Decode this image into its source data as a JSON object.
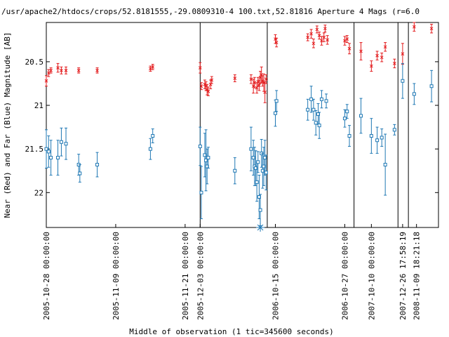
{
  "chart_data": {
    "type": "scatter",
    "title": "/usr/apache2/htdocs/crops/52.8181555,-29.0809310-4 100.txt,52.81816    Aperture 4 Mags (r=6.0",
    "xlabel": "Middle of observation (1 tic=345600 seconds)",
    "ylabel": "Near (Red) and Far (Blue) Magnitude [AB]",
    "y_inverted": true,
    "ylim": [
      22.4,
      20.05
    ],
    "y_ticks": [
      {
        "value": 20.5,
        "label": "20.5"
      },
      {
        "value": 21,
        "label": "21"
      },
      {
        "value": 21.5,
        "label": "21.5"
      },
      {
        "value": 22,
        "label": "22"
      }
    ],
    "grid": false,
    "legend": "none",
    "colors": {
      "near": "#e31a1c",
      "far": "#1f78b4",
      "axis": "#000000"
    },
    "segments": [
      {
        "x_range": [
          0,
          6.65
        ],
        "x_ticks": [
          {
            "x": 0,
            "label": "2005-10-28 00:00:00"
          },
          {
            "x": 3,
            "label": "2005-11-09 00:00:00"
          },
          {
            "x": 6,
            "label": "2005-11-21 00:00:00"
          }
        ]
      },
      {
        "x_range": [
          0,
          2.9
        ],
        "x_ticks": [
          {
            "x": 0,
            "label": "2005-12-03 00:00:00"
          }
        ]
      },
      {
        "x_range": [
          0,
          3.75
        ],
        "x_ticks": [
          {
            "x": 0.35,
            "label": "2006-10-15 00:00:00"
          },
          {
            "x": 3.35,
            "label": "2006-10-27 00:00:00"
          }
        ]
      },
      {
        "x_range": [
          0,
          1.9
        ],
        "x_ticks": [
          {
            "x": 0.75,
            "label": "2007-10-10 00:00:00"
          }
        ]
      },
      {
        "x_range": [
          0,
          0.45
        ],
        "x_ticks": [
          {
            "x": 0.2,
            "label": "2007-12-26 17:58:19"
          }
        ]
      },
      {
        "x_range": [
          0,
          1.3
        ],
        "x_ticks": [
          {
            "x": 0.35,
            "label": "2008-11-09 18:21:18"
          }
        ]
      }
    ],
    "series": [
      {
        "name": "Near",
        "marker": "x",
        "points": [
          {
            "s": 0,
            "x": 0.0,
            "y": 20.72,
            "e": 0.06
          },
          {
            "s": 0,
            "x": 0.1,
            "y": 20.63,
            "e": 0.04
          },
          {
            "s": 0,
            "x": 0.2,
            "y": 20.6,
            "e": 0.03
          },
          {
            "s": 0,
            "x": 0.5,
            "y": 20.57,
            "e": 0.05
          },
          {
            "s": 0,
            "x": 0.65,
            "y": 20.6,
            "e": 0.04
          },
          {
            "s": 0,
            "x": 0.85,
            "y": 20.6,
            "e": 0.04
          },
          {
            "s": 0,
            "x": 1.4,
            "y": 20.6,
            "e": 0.03
          },
          {
            "s": 0,
            "x": 2.2,
            "y": 20.6,
            "e": 0.03
          },
          {
            "s": 0,
            "x": 4.5,
            "y": 20.58,
            "e": 0.03
          },
          {
            "s": 0,
            "x": 4.6,
            "y": 20.56,
            "e": 0.03
          },
          {
            "s": 1,
            "x": 0.0,
            "y": 20.57,
            "e": 0.06
          },
          {
            "s": 1,
            "x": 0.05,
            "y": 20.78,
            "e": 0.04
          },
          {
            "s": 1,
            "x": 0.2,
            "y": 20.76,
            "e": 0.05
          },
          {
            "s": 1,
            "x": 0.25,
            "y": 20.78,
            "e": 0.05
          },
          {
            "s": 1,
            "x": 0.3,
            "y": 20.82,
            "e": 0.06
          },
          {
            "s": 1,
            "x": 0.35,
            "y": 20.84,
            "e": 0.05
          },
          {
            "s": 1,
            "x": 0.45,
            "y": 20.76,
            "e": 0.05
          },
          {
            "s": 1,
            "x": 0.5,
            "y": 20.71,
            "e": 0.04
          },
          {
            "s": 1,
            "x": 1.5,
            "y": 20.69,
            "e": 0.04
          },
          {
            "s": 1,
            "x": 2.2,
            "y": 20.7,
            "e": 0.05
          },
          {
            "s": 1,
            "x": 2.3,
            "y": 20.78,
            "e": 0.08
          },
          {
            "s": 1,
            "x": 2.35,
            "y": 20.74,
            "e": 0.06
          },
          {
            "s": 1,
            "x": 2.45,
            "y": 20.8,
            "e": 0.06
          },
          {
            "s": 1,
            "x": 2.5,
            "y": 20.73,
            "e": 0.05
          },
          {
            "s": 1,
            "x": 2.55,
            "y": 20.77,
            "e": 0.06
          },
          {
            "s": 1,
            "x": 2.6,
            "y": 20.68,
            "e": 0.07
          },
          {
            "s": 1,
            "x": 2.65,
            "y": 20.65,
            "e": 0.09
          },
          {
            "s": 1,
            "x": 2.7,
            "y": 20.72,
            "e": 0.06
          },
          {
            "s": 1,
            "x": 2.75,
            "y": 20.74,
            "e": 0.1
          },
          {
            "s": 1,
            "x": 2.8,
            "y": 20.85,
            "e": 0.12
          },
          {
            "s": 1,
            "x": 2.85,
            "y": 20.7,
            "e": 0.05
          },
          {
            "s": 2,
            "x": 0.35,
            "y": 20.24,
            "e": 0.05
          },
          {
            "s": 2,
            "x": 0.4,
            "y": 20.28,
            "e": 0.05
          },
          {
            "s": 2,
            "x": 1.75,
            "y": 20.22,
            "e": 0.04
          },
          {
            "s": 2,
            "x": 1.9,
            "y": 20.18,
            "e": 0.05
          },
          {
            "s": 2,
            "x": 2.0,
            "y": 20.29,
            "e": 0.05
          },
          {
            "s": 2,
            "x": 2.15,
            "y": 20.13,
            "e": 0.04
          },
          {
            "s": 2,
            "x": 2.25,
            "y": 20.2,
            "e": 0.04
          },
          {
            "s": 2,
            "x": 2.35,
            "y": 20.26,
            "e": 0.05
          },
          {
            "s": 2,
            "x": 2.45,
            "y": 20.22,
            "e": 0.05
          },
          {
            "s": 2,
            "x": 2.5,
            "y": 20.12,
            "e": 0.04
          },
          {
            "s": 2,
            "x": 2.6,
            "y": 20.25,
            "e": 0.05
          },
          {
            "s": 2,
            "x": 3.35,
            "y": 20.26,
            "e": 0.05
          },
          {
            "s": 2,
            "x": 3.45,
            "y": 20.24,
            "e": 0.04
          },
          {
            "s": 2,
            "x": 3.55,
            "y": 20.35,
            "e": 0.06
          },
          {
            "s": 3,
            "x": 0.3,
            "y": 20.38,
            "e": 0.1
          },
          {
            "s": 3,
            "x": 0.75,
            "y": 20.55,
            "e": 0.06
          },
          {
            "s": 3,
            "x": 1.0,
            "y": 20.43,
            "e": 0.05
          },
          {
            "s": 3,
            "x": 1.2,
            "y": 20.45,
            "e": 0.05
          },
          {
            "s": 3,
            "x": 1.35,
            "y": 20.33,
            "e": 0.05
          },
          {
            "s": 3,
            "x": 1.75,
            "y": 20.52,
            "e": 0.05
          },
          {
            "s": 4,
            "x": 0.2,
            "y": 20.41,
            "e": 0.12
          },
          {
            "s": 5,
            "x": 0.25,
            "y": 20.1,
            "e": 0.05
          },
          {
            "s": 5,
            "x": 1.0,
            "y": 20.12,
            "e": 0.05
          }
        ]
      },
      {
        "name": "Far",
        "marker": "square",
        "points": [
          {
            "s": 0,
            "x": 0.0,
            "y": 21.5,
            "e": 0.22
          },
          {
            "s": 0,
            "x": 0.1,
            "y": 21.53,
            "e": 0.18
          },
          {
            "s": 0,
            "x": 0.2,
            "y": 21.6,
            "e": 0.2
          },
          {
            "s": 0,
            "x": 0.5,
            "y": 21.6,
            "e": 0.2
          },
          {
            "s": 0,
            "x": 0.65,
            "y": 21.42,
            "e": 0.16
          },
          {
            "s": 0,
            "x": 0.85,
            "y": 21.44,
            "e": 0.18
          },
          {
            "s": 0,
            "x": 1.4,
            "y": 21.68,
            "e": 0.12
          },
          {
            "s": 0,
            "x": 1.45,
            "y": 21.78,
            "e": 0.1
          },
          {
            "s": 0,
            "x": 2.2,
            "y": 21.68,
            "e": 0.14
          },
          {
            "s": 0,
            "x": 4.5,
            "y": 21.5,
            "e": 0.12
          },
          {
            "s": 0,
            "x": 4.6,
            "y": 21.35,
            "e": 0.08
          },
          {
            "s": 1,
            "x": 0.0,
            "y": 21.47,
            "e": 0.22
          },
          {
            "s": 1,
            "x": 0.05,
            "y": 22.0,
            "e": 0.3
          },
          {
            "s": 1,
            "x": 0.2,
            "y": 21.57,
            "e": 0.25
          },
          {
            "s": 1,
            "x": 0.25,
            "y": 21.63,
            "e": 0.35
          },
          {
            "s": 1,
            "x": 0.3,
            "y": 21.7,
            "e": 0.2
          },
          {
            "s": 1,
            "x": 0.35,
            "y": 21.6,
            "e": 0.12
          },
          {
            "s": 1,
            "x": 1.5,
            "y": 21.75,
            "e": 0.15
          },
          {
            "s": 1,
            "x": 2.2,
            "y": 21.5,
            "e": 0.25
          },
          {
            "s": 1,
            "x": 2.3,
            "y": 21.6,
            "e": 0.2
          },
          {
            "s": 1,
            "x": 2.35,
            "y": 21.7,
            "e": 0.22
          },
          {
            "s": 1,
            "x": 2.4,
            "y": 21.72,
            "e": 0.2
          },
          {
            "s": 1,
            "x": 2.45,
            "y": 21.88,
            "e": 0.22
          },
          {
            "s": 1,
            "x": 2.5,
            "y": 21.65,
            "e": 0.12
          },
          {
            "s": 1,
            "x": 2.55,
            "y": 22.05,
            "e": 0.25
          },
          {
            "s": 1,
            "x": 2.6,
            "y": 22.2,
            "e": 0.18
          },
          {
            "s": 1,
            "x": 2.65,
            "y": 21.55,
            "e": 0.16
          },
          {
            "s": 1,
            "x": 2.7,
            "y": 21.75,
            "e": 0.2
          },
          {
            "s": 1,
            "x": 2.75,
            "y": 21.7,
            "e": 0.22
          },
          {
            "s": 1,
            "x": 2.8,
            "y": 21.6,
            "e": 0.2
          },
          {
            "s": 1,
            "x": 2.85,
            "y": 21.77,
            "e": 0.2
          },
          {
            "s": 2,
            "x": 0.35,
            "y": 21.09,
            "e": 0.15
          },
          {
            "s": 2,
            "x": 0.4,
            "y": 20.95,
            "e": 0.12
          },
          {
            "s": 2,
            "x": 1.75,
            "y": 21.05,
            "e": 0.12
          },
          {
            "s": 2,
            "x": 1.9,
            "y": 20.93,
            "e": 0.15
          },
          {
            "s": 2,
            "x": 2.0,
            "y": 21.05,
            "e": 0.12
          },
          {
            "s": 2,
            "x": 2.1,
            "y": 21.2,
            "e": 0.14
          },
          {
            "s": 2,
            "x": 2.2,
            "y": 21.1,
            "e": 0.12
          },
          {
            "s": 2,
            "x": 2.25,
            "y": 21.23,
            "e": 0.15
          },
          {
            "s": 2,
            "x": 2.35,
            "y": 20.93,
            "e": 0.1
          },
          {
            "s": 2,
            "x": 2.55,
            "y": 20.95,
            "e": 0.08
          },
          {
            "s": 2,
            "x": 3.35,
            "y": 21.15,
            "e": 0.1
          },
          {
            "s": 2,
            "x": 3.45,
            "y": 21.07,
            "e": 0.08
          },
          {
            "s": 2,
            "x": 3.55,
            "y": 21.35,
            "e": 0.12
          },
          {
            "s": 3,
            "x": 0.3,
            "y": 21.12,
            "e": 0.2
          },
          {
            "s": 3,
            "x": 0.75,
            "y": 21.35,
            "e": 0.2
          },
          {
            "s": 3,
            "x": 1.0,
            "y": 21.4,
            "e": 0.15
          },
          {
            "s": 3,
            "x": 1.2,
            "y": 21.37,
            "e": 0.1
          },
          {
            "s": 3,
            "x": 1.35,
            "y": 21.68,
            "e": 0.35
          },
          {
            "s": 3,
            "x": 1.75,
            "y": 21.28,
            "e": 0.06
          },
          {
            "s": 4,
            "x": 0.2,
            "y": 20.72,
            "e": 0.2
          },
          {
            "s": 5,
            "x": 0.25,
            "y": 20.87,
            "e": 0.12
          },
          {
            "s": 5,
            "x": 1.0,
            "y": 20.78,
            "e": 0.18
          }
        ]
      },
      {
        "name": "Far marker",
        "marker": "star",
        "points": [
          {
            "s": 1,
            "x": 2.6,
            "y": 22.4
          }
        ]
      }
    ]
  }
}
